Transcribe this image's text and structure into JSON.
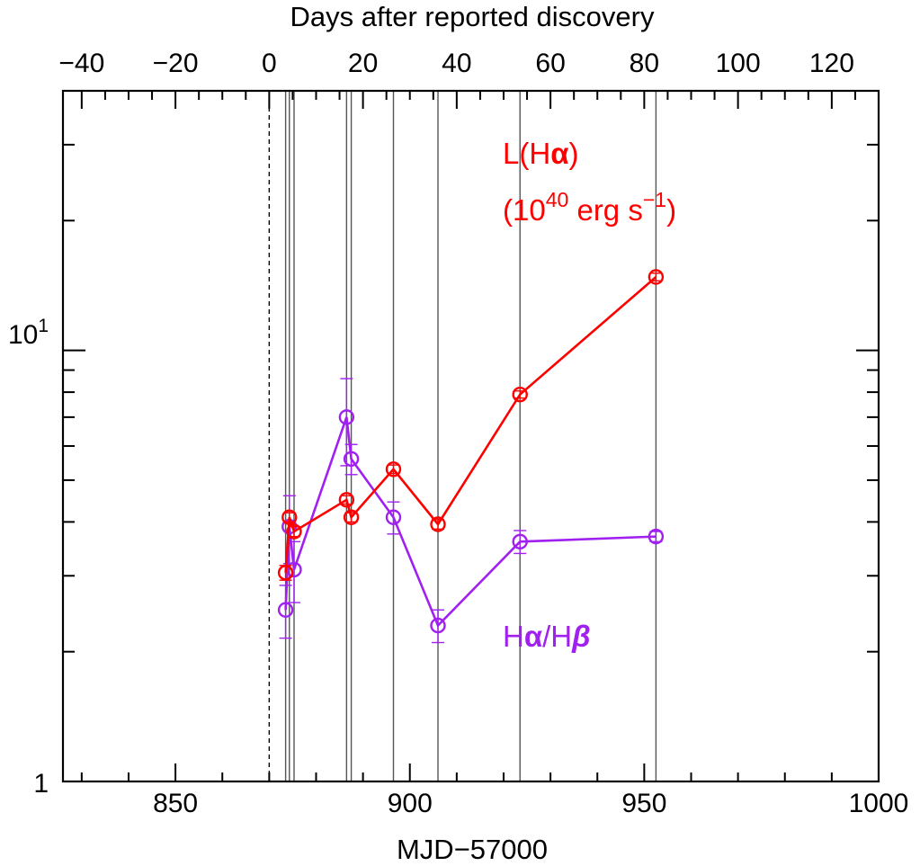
{
  "chart_data": {
    "type": "line",
    "title": "",
    "xlabel": "MJD−57000",
    "x2label": "Days after reported discovery",
    "ylabel": "",
    "xlim": [
      826,
      1000
    ],
    "ylim": [
      1,
      40
    ],
    "yscale": "log",
    "x_ticks": [
      850,
      900,
      950,
      1000
    ],
    "x_ticks_labels": [
      "850",
      "900",
      "950",
      "1000"
    ],
    "x2_offset": 870,
    "x2_ticks": [
      -40,
      -20,
      0,
      20,
      40,
      60,
      80,
      100,
      120
    ],
    "x2_ticks_labels": [
      "−40",
      "−20",
      "0",
      "20",
      "40",
      "60",
      "80",
      "100",
      "120"
    ],
    "y_tick_labels": {
      "one": "1",
      "ten_base": "10",
      "ten_exp": "1"
    },
    "discovery_line_x": 870,
    "observation_epochs": [
      873.5,
      874.3,
      875.3,
      886.5,
      887.5,
      896.5,
      906,
      923.5,
      952.5
    ],
    "series": [
      {
        "name": "L(Hα) (10^40 erg s^-1)",
        "color": "#ff0000",
        "x": [
          873.5,
          874.3,
          875.3,
          886.5,
          887.5,
          896.5,
          906,
          923.5,
          952.5
        ],
        "values": [
          3.05,
          4.1,
          3.8,
          4.5,
          4.1,
          5.3,
          3.95,
          7.9,
          14.8
        ],
        "errors": [
          0.12,
          0.1,
          0.1,
          0.1,
          0.1,
          0.12,
          0.1,
          0.15,
          0.3
        ]
      },
      {
        "name": "Hα/Hβ",
        "color": "#a020f0",
        "x": [
          873.5,
          874.3,
          875.3,
          886.5,
          887.5,
          896.5,
          906,
          923.5,
          952.5
        ],
        "values": [
          2.5,
          3.9,
          3.1,
          7.0,
          5.6,
          4.1,
          2.3,
          3.6,
          3.7
        ],
        "errors": [
          0.35,
          0.7,
          0.5,
          1.6,
          0.45,
          0.35,
          0.2,
          0.22,
          0.1
        ]
      }
    ],
    "annotations": {
      "lha_line1_prefix": "L(H",
      "lha_line1_greek": "α",
      "lha_line1_suffix": ")",
      "lha_line2_open": "(10",
      "lha_line2_exp": "40",
      "lha_line2_mid": " erg s",
      "lha_line2_exp2": "−1",
      "lha_line2_close": ")",
      "ratio_h1": "H",
      "ratio_alpha": "α",
      "ratio_slash": "/H",
      "ratio_beta": "β"
    }
  }
}
